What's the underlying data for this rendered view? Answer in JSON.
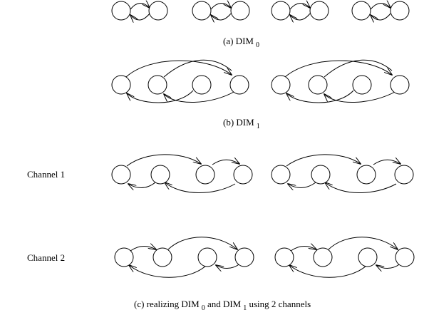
{
  "captions": {
    "a": {
      "text": "(a) DIM",
      "sub": "0"
    },
    "b": {
      "text": "(b) DIM",
      "sub": "1"
    },
    "c": {
      "pre": "(c) realizing  DIM",
      "sub0": "0",
      "mid": " and DIM",
      "sub1": "1",
      "post": "  using 2 channels"
    }
  },
  "channels": {
    "channel1": "Channel 1",
    "channel2": "Channel  2"
  },
  "colors": {
    "stroke": "#000000",
    "node_fill": "#ffffff"
  }
}
